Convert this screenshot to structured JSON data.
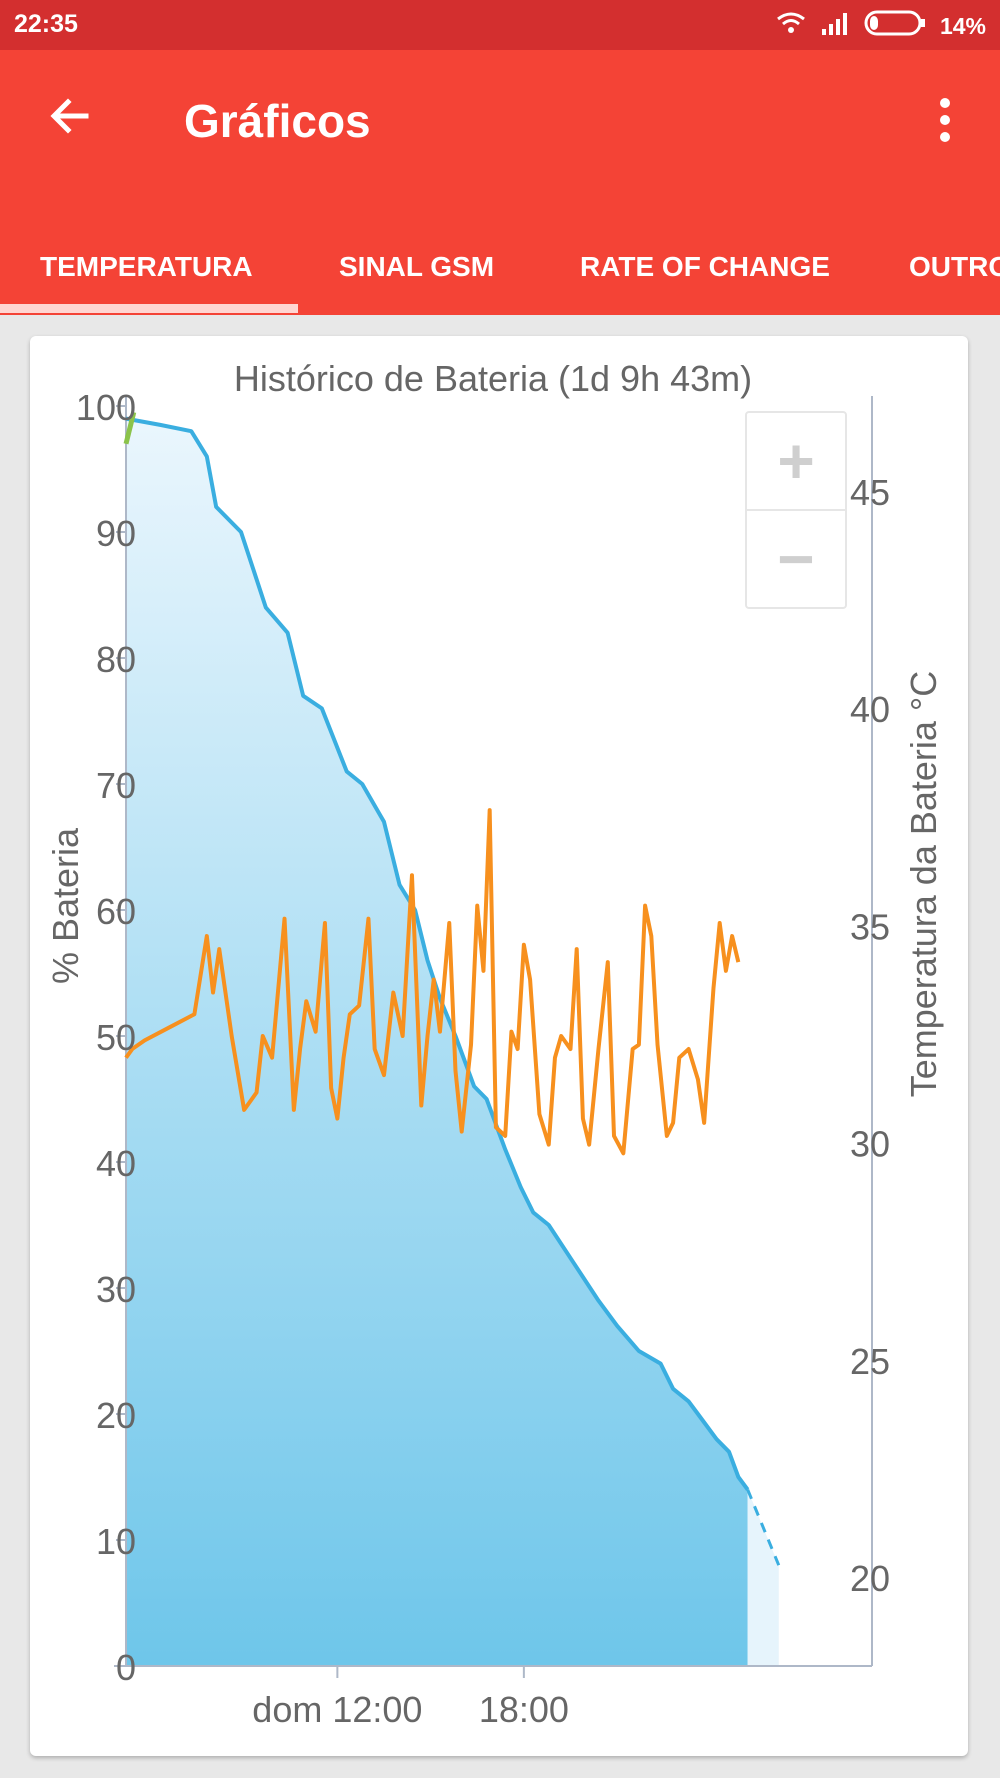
{
  "status_bar": {
    "time": "22:35",
    "battery_text": "14%",
    "icons": [
      "wifi-icon",
      "signal-icon",
      "battery-icon"
    ]
  },
  "app_bar": {
    "title": "Gráficos",
    "back_icon": "arrow-back-icon",
    "menu_icon": "more-vert-icon",
    "color": "#f44336",
    "status_color": "#d32f2f"
  },
  "tabs": [
    {
      "label": "TEMPERATURA",
      "selected": true
    },
    {
      "label": "SINAL GSM",
      "selected": false
    },
    {
      "label": "RATE OF CHANGE",
      "selected": false
    },
    {
      "label": "OUTRO",
      "selected": false
    }
  ],
  "zoom": {
    "plus": "+",
    "minus": "−"
  },
  "chart_data": {
    "type": "area",
    "title": "Histórico de Bateria (1d 9h 43m)",
    "ylabel": "% Bateria",
    "y2label": "Temperatura da Bateria °C",
    "ylim": [
      0,
      100
    ],
    "y2lim": [
      18,
      47
    ],
    "yticks": [
      0,
      10,
      20,
      30,
      40,
      50,
      60,
      70,
      80,
      90,
      100
    ],
    "y2ticks": [
      20,
      25,
      30,
      35,
      40,
      45
    ],
    "xlim": [
      5.2,
      29.2
    ],
    "xticks": [
      {
        "value": 12,
        "label": "dom 12:00"
      },
      {
        "value": 18,
        "label": "18:00"
      }
    ],
    "colors": {
      "battery": "#3aaee0",
      "temperature": "#f7901e",
      "start_marker": "#8bc34a"
    },
    "series": [
      {
        "key": "battery",
        "axis": "left",
        "x": [
          5.2,
          6.3,
          7.3,
          7.8,
          8.1,
          8.9,
          9.3,
          9.7,
          10.4,
          10.9,
          11.5,
          12.3,
          12.8,
          13.5,
          14.0,
          14.5,
          14.9,
          15.3,
          15.8,
          16.4,
          16.8,
          17.4,
          17.9,
          18.3,
          18.8,
          19.6,
          20.4,
          21.0,
          21.7,
          22.4,
          22.8,
          23.3,
          23.6,
          24.2,
          24.6,
          24.9,
          25.2
        ],
        "values": [
          99,
          98.5,
          98,
          96,
          92,
          90,
          87,
          84,
          82,
          77,
          76,
          71,
          70,
          67,
          62,
          60,
          56,
          53,
          50,
          46,
          45,
          41,
          38,
          36,
          35,
          32,
          29,
          27,
          25,
          24,
          22,
          21,
          20,
          18,
          17,
          15,
          14
        ]
      },
      {
        "key": "battery_projected",
        "axis": "left",
        "dashed": true,
        "x": [
          25.2,
          26.2
        ],
        "values": [
          14,
          8
        ]
      },
      {
        "key": "temperature",
        "axis": "right",
        "x": [
          5.2,
          5.4,
          5.8,
          6.6,
          7.4,
          7.8,
          8.0,
          8.2,
          8.6,
          9.0,
          9.4,
          9.6,
          9.9,
          10.3,
          10.6,
          10.8,
          11.0,
          11.3,
          11.6,
          11.8,
          12.0,
          12.2,
          12.4,
          12.7,
          13.0,
          13.2,
          13.5,
          13.8,
          14.1,
          14.4,
          14.7,
          14.9,
          15.1,
          15.3,
          15.6,
          15.8,
          16.0,
          16.3,
          16.5,
          16.7,
          16.9,
          17.1,
          17.4,
          17.6,
          17.8,
          18.0,
          18.2,
          18.5,
          18.8,
          19.0,
          19.2,
          19.5,
          19.7,
          19.9,
          20.1,
          20.4,
          20.7,
          20.9,
          21.2,
          21.5,
          21.7,
          21.9,
          22.1,
          22.3,
          22.6,
          22.8,
          23.0,
          23.3,
          23.6,
          23.8,
          24.1,
          24.3,
          24.5,
          24.7,
          24.9
        ],
        "values": [
          32,
          32.2,
          32.4,
          32.7,
          33,
          34.8,
          33.5,
          34.5,
          32.5,
          30.8,
          31.2,
          32.5,
          32,
          35.2,
          30.8,
          32.2,
          33.3,
          32.6,
          35.1,
          31.3,
          30.6,
          32,
          33,
          33.2,
          35.2,
          32.2,
          31.6,
          33.5,
          32.5,
          36.2,
          30.9,
          32.5,
          33.8,
          32.6,
          35.1,
          31.7,
          30.3,
          32.3,
          35.5,
          34,
          37.7,
          30.4,
          30.2,
          32.6,
          32.2,
          34.6,
          33.8,
          30.7,
          30,
          32,
          32.5,
          32.2,
          34.5,
          30.6,
          30,
          32.2,
          34.2,
          30.2,
          29.8,
          32.2,
          32.3,
          35.5,
          34.8,
          32.3,
          30.2,
          30.5,
          32,
          32.2,
          31.5,
          30.5,
          33.6,
          35.1,
          34,
          34.8,
          34.2
        ]
      },
      {
        "key": "start_marker",
        "axis": "left",
        "x": [
          5.2,
          5.45
        ],
        "values": [
          97,
          99.5
        ]
      }
    ]
  }
}
